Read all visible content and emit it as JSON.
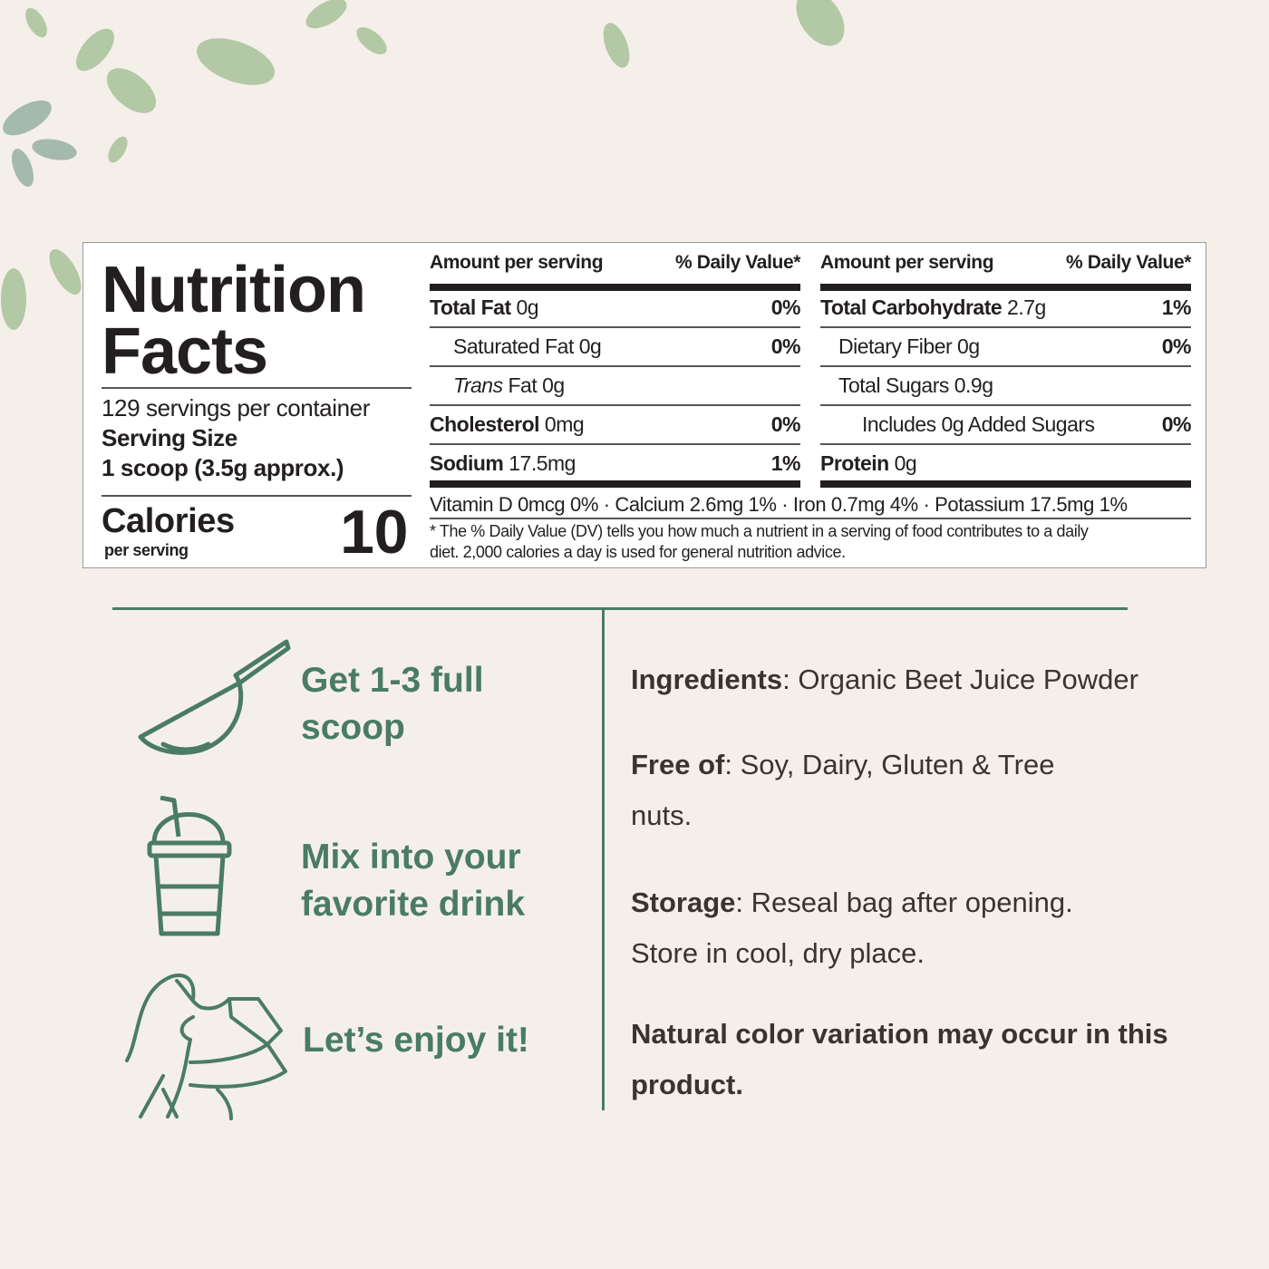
{
  "nutrition": {
    "title_line1": "Nutrition",
    "title_line2": "Facts",
    "servings": "129 servings per container",
    "serving_size_label": "Serving Size",
    "serving_size_value": "1 scoop (3.5g approx.)",
    "calories_label": "Calories",
    "calories_sub": "per serving",
    "calories_value": "10",
    "header_amount": "Amount per serving",
    "header_dv": "% Daily Value*",
    "left_rows": [
      {
        "name": "Total Fat",
        "amount": "0g",
        "dv": "0%"
      },
      {
        "name": "Saturated Fat",
        "amount": "0g",
        "dv": "0%"
      },
      {
        "name": "Trans",
        "name2": "Fat",
        "amount": "0g",
        "dv": ""
      },
      {
        "name": "Cholesterol",
        "amount": "0mg",
        "dv": "0%"
      },
      {
        "name": "Sodium",
        "amount": "17.5mg",
        "dv": "1%"
      }
    ],
    "right_rows": [
      {
        "name": "Total Carbohydrate",
        "amount": "2.7g",
        "dv": "1%"
      },
      {
        "name": "Dietary Fiber",
        "amount": "0g",
        "dv": "0%"
      },
      {
        "name": "Total Sugars",
        "amount": "0.9g",
        "dv": ""
      },
      {
        "name": "Includes 0g Added Sugars",
        "amount": "",
        "dv": "0%"
      },
      {
        "name": "Protein",
        "amount": "0g",
        "dv": ""
      }
    ],
    "vitamins": "Vitamin D 0mcg 0% · Calcium 2.6mg 1% · Iron 0.7mg 4% · Potassium 17.5mg 1%",
    "footnote_line1": "* The % Daily Value (DV) tells you how much a nutrient in a serving of food contributes to a daily",
    "footnote_line2": "diet. 2,000 calories a day is used for general nutrition advice."
  },
  "steps": [
    {
      "icon": "scoop-icon",
      "line1": "Get 1-3 full",
      "line2": "scoop"
    },
    {
      "icon": "cup-icon",
      "line1": "Mix into your",
      "line2": "favorite drink"
    },
    {
      "icon": "woman-drinking-icon",
      "line1": "Let’s enjoy it!"
    }
  ],
  "info": {
    "ingredients_label": "Ingredients",
    "ingredients_value": ": Organic Beet Juice Powder",
    "free_label": "Free of",
    "free_value": ": Soy, Dairy, Gluten & Tree",
    "free_value2": "nuts.",
    "storage_label": "Storage",
    "storage_value": ": Reseal bag after opening.",
    "storage_value2": "Store in cool, dry place.",
    "note_line1": "Natural color variation may occur in this",
    "note_line2": "product."
  },
  "colors": {
    "accent": "#4a7c63",
    "background": "#f5efea",
    "text": "#231f20"
  }
}
